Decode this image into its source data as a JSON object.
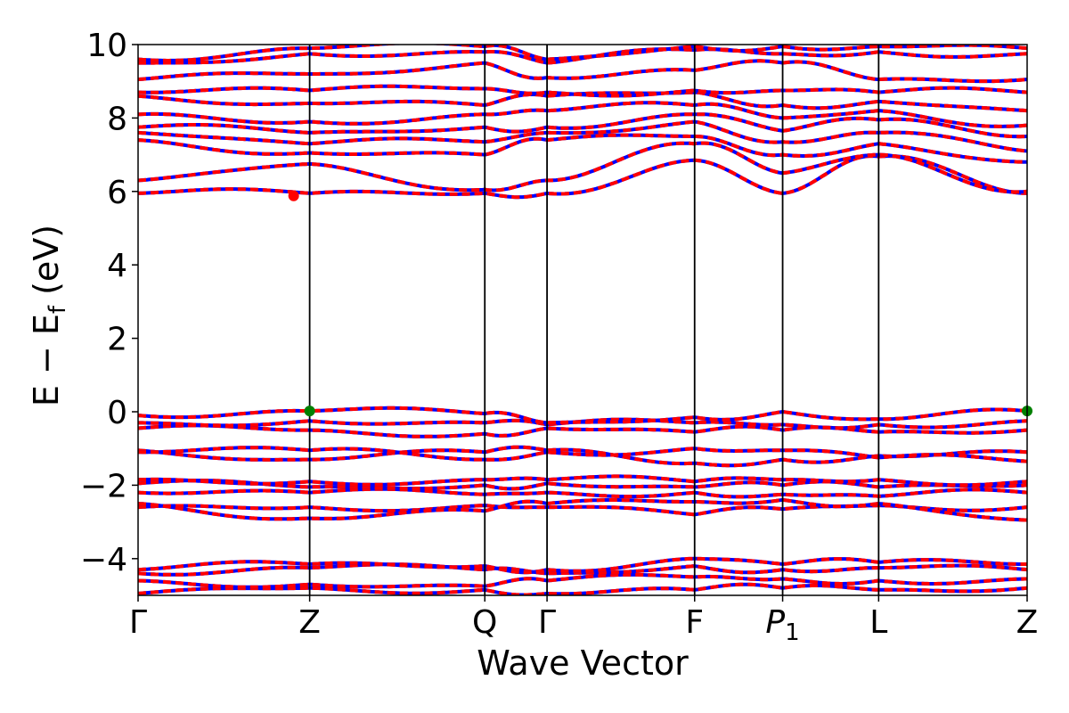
{
  "chart_data": {
    "type": "line",
    "title": "",
    "xlabel": "Wave Vector",
    "ylabel": "E − E",
    "ylabel_sub": "f",
    "ylabel_unit": " (eV)",
    "ylim": [
      -5,
      10
    ],
    "yticks": [
      -4,
      -2,
      0,
      2,
      4,
      6,
      8,
      10
    ],
    "ytick_labels": [
      "−4",
      "−2",
      "0",
      "2",
      "4",
      "6",
      "8",
      "10"
    ],
    "kpoints": [
      {
        "label": "Γ",
        "x": 0.0,
        "italic": false,
        "sub": ""
      },
      {
        "label": "Z",
        "x": 0.193,
        "italic": false,
        "sub": ""
      },
      {
        "label": "Q",
        "x": 0.39,
        "italic": false,
        "sub": ""
      },
      {
        "label": "Γ",
        "x": 0.46,
        "italic": false,
        "sub": ""
      },
      {
        "label": "F",
        "x": 0.626,
        "italic": false,
        "sub": ""
      },
      {
        "label": "P",
        "x": 0.725,
        "italic": true,
        "sub": "1"
      },
      {
        "label": "L",
        "x": 0.833,
        "italic": false,
        "sub": ""
      },
      {
        "label": "Z",
        "x": 1.0,
        "italic": false,
        "sub": ""
      }
    ],
    "colors": {
      "spin_up": "#ff0000",
      "spin_down": "#0000ff",
      "cbm_marker": "#ff0000",
      "vbm_marker": "#008000",
      "kpath_line": "#000000"
    },
    "markers": [
      {
        "name": "conduction-band-minimum",
        "x": 0.175,
        "y": 5.88,
        "color": "#ff0000"
      },
      {
        "name": "valence-band-maximum",
        "x": 0.193,
        "y": 0.02,
        "color": "#008000"
      },
      {
        "name": "valence-band-maximum",
        "x": 1.0,
        "y": 0.02,
        "color": "#008000"
      }
    ],
    "bands_approx": {
      "note_free": true,
      "series": [
        {
          "name": "",
          "values_at_kpoints": [
            -4.95,
            -4.8,
            -4.85,
            -4.95,
            -4.85,
            -4.8,
            -4.85,
            -4.8
          ]
        },
        {
          "name": "",
          "values_at_kpoints": [
            -4.6,
            -4.7,
            -4.75,
            -4.6,
            -4.5,
            -4.55,
            -4.6,
            -4.55
          ]
        },
        {
          "name": "",
          "values_at_kpoints": [
            -4.4,
            -4.25,
            -4.3,
            -4.4,
            -4.2,
            -4.3,
            -4.25,
            -4.3
          ]
        },
        {
          "name": "",
          "values_at_kpoints": [
            -4.3,
            -4.15,
            -4.2,
            -4.3,
            -4.0,
            -4.15,
            -4.1,
            -4.15
          ]
        },
        {
          "name": "",
          "values_at_kpoints": [
            -2.6,
            -2.6,
            -2.55,
            -2.6,
            -2.8,
            -2.65,
            -2.55,
            -2.6
          ]
        },
        {
          "name": "",
          "values_at_kpoints": [
            -2.5,
            -2.9,
            -2.7,
            -2.5,
            -2.45,
            -2.4,
            -2.5,
            -2.95
          ]
        },
        {
          "name": "",
          "values_at_kpoints": [
            -2.2,
            -2.2,
            -2.25,
            -2.2,
            -2.2,
            -2.25,
            -2.3,
            -2.2
          ]
        },
        {
          "name": "",
          "values_at_kpoints": [
            -1.95,
            -2.05,
            -2.0,
            -1.95,
            -2.05,
            -2.0,
            -2.05,
            -2.0
          ]
        },
        {
          "name": "",
          "values_at_kpoints": [
            -1.85,
            -1.9,
            -1.85,
            -1.85,
            -1.9,
            -1.85,
            -1.85,
            -1.9
          ]
        },
        {
          "name": "",
          "values_at_kpoints": [
            -1.05,
            -1.3,
            -1.1,
            -1.05,
            -1.4,
            -1.3,
            -1.2,
            -1.1
          ]
        },
        {
          "name": "",
          "values_at_kpoints": [
            -1.1,
            -1.05,
            -1.3,
            -1.1,
            -1.0,
            -1.05,
            -1.25,
            -1.35
          ]
        },
        {
          "name": "",
          "values_at_kpoints": [
            -0.45,
            -0.5,
            -0.6,
            -0.45,
            -0.55,
            -0.5,
            -0.55,
            -0.5
          ]
        },
        {
          "name": "",
          "values_at_kpoints": [
            -0.3,
            -0.25,
            -0.3,
            -0.35,
            -0.3,
            -0.35,
            -0.35,
            -0.25
          ]
        },
        {
          "name": "",
          "values_at_kpoints": [
            -0.1,
            0.02,
            -0.05,
            -0.3,
            -0.15,
            0.0,
            -0.2,
            0.02
          ]
        },
        {
          "name": "",
          "values_at_kpoints": [
            5.95,
            5.95,
            5.95,
            5.95,
            6.85,
            5.95,
            6.95,
            5.95
          ]
        },
        {
          "name": "",
          "values_at_kpoints": [
            6.3,
            6.75,
            6.05,
            6.3,
            7.3,
            6.5,
            7.0,
            6.0
          ]
        },
        {
          "name": "",
          "values_at_kpoints": [
            7.4,
            7.05,
            7.0,
            7.4,
            7.5,
            7.0,
            7.3,
            6.8
          ]
        },
        {
          "name": "",
          "values_at_kpoints": [
            7.6,
            7.3,
            7.35,
            7.6,
            7.9,
            7.35,
            7.6,
            7.1
          ]
        },
        {
          "name": "",
          "values_at_kpoints": [
            7.75,
            7.6,
            7.75,
            7.75,
            8.1,
            7.65,
            7.95,
            7.5
          ]
        },
        {
          "name": "",
          "values_at_kpoints": [
            8.1,
            7.9,
            8.1,
            8.2,
            8.35,
            8.0,
            8.2,
            7.8
          ]
        },
        {
          "name": "",
          "values_at_kpoints": [
            8.6,
            8.4,
            8.35,
            8.6,
            8.7,
            8.35,
            8.45,
            8.2
          ]
        },
        {
          "name": "",
          "values_at_kpoints": [
            8.7,
            8.75,
            8.8,
            8.7,
            8.75,
            8.75,
            8.7,
            8.7
          ]
        },
        {
          "name": "",
          "values_at_kpoints": [
            9.05,
            9.2,
            9.5,
            9.1,
            9.3,
            9.5,
            9.05,
            9.05
          ]
        },
        {
          "name": "",
          "values_at_kpoints": [
            9.5,
            9.75,
            9.8,
            9.5,
            9.85,
            9.75,
            9.8,
            9.75
          ]
        },
        {
          "name": "",
          "values_at_kpoints": [
            9.6,
            9.9,
            9.95,
            9.6,
            9.95,
            9.95,
            9.95,
            9.9
          ]
        }
      ]
    }
  }
}
